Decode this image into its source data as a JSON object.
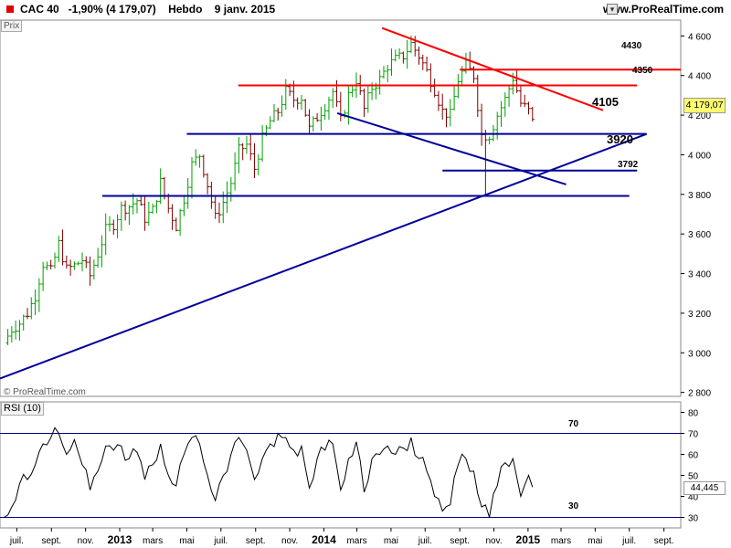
{
  "header": {
    "title": "CAC 40   -1,90% (4 179,07)    Hebdo    9 janv. 2015",
    "website": "www.ProRealTime.com"
  },
  "panel_labels": {
    "price": "Prix",
    "rsi": "RSI (10)"
  },
  "watermark": "© ProRealTime.com",
  "last_price_label": "4 179,07",
  "last_rsi_label": "44,445",
  "colors": {
    "bar_up": "#00a000",
    "bar_down": "#800000",
    "resistance": "#ff0000",
    "support": "#000099",
    "rsi_line": "#000000"
  },
  "chart_data": [
    {
      "type": "ohlc",
      "timeframe": "weekly",
      "symbol": "CAC 40",
      "ylim": [
        2780,
        4680
      ],
      "yticks": [
        2800,
        3000,
        3200,
        3400,
        3600,
        3800,
        4000,
        4200,
        4400,
        4600
      ],
      "ytick_labels": [
        "2 800",
        "3 000",
        "3 200",
        "3 400",
        "3 600",
        "3 800",
        "4 000",
        "4 200",
        "4 400",
        "4 600"
      ],
      "xlim": [
        "2012-06-01",
        "2015-10-01"
      ],
      "close_series": [
        {
          "date": "2012-06-08",
          "v": 3050
        },
        {
          "date": "2012-06-22",
          "v": 3120
        },
        {
          "date": "2012-07-06",
          "v": 3150
        },
        {
          "date": "2012-07-20",
          "v": 3200
        },
        {
          "date": "2012-08-03",
          "v": 3290
        },
        {
          "date": "2012-08-17",
          "v": 3450
        },
        {
          "date": "2012-08-31",
          "v": 3410
        },
        {
          "date": "2012-09-14",
          "v": 3550
        },
        {
          "date": "2012-09-28",
          "v": 3420
        },
        {
          "date": "2012-10-12",
          "v": 3440
        },
        {
          "date": "2012-10-26",
          "v": 3470
        },
        {
          "date": "2012-11-09",
          "v": 3390
        },
        {
          "date": "2012-11-23",
          "v": 3500
        },
        {
          "date": "2012-12-07",
          "v": 3620
        },
        {
          "date": "2012-12-21",
          "v": 3650
        },
        {
          "date": "2013-01-04",
          "v": 3730
        },
        {
          "date": "2013-01-18",
          "v": 3740
        },
        {
          "date": "2013-02-01",
          "v": 3770
        },
        {
          "date": "2013-02-15",
          "v": 3680
        },
        {
          "date": "2013-03-01",
          "v": 3720
        },
        {
          "date": "2013-03-15",
          "v": 3860
        },
        {
          "date": "2013-03-29",
          "v": 3730
        },
        {
          "date": "2013-04-12",
          "v": 3640
        },
        {
          "date": "2013-04-26",
          "v": 3780
        },
        {
          "date": "2013-05-10",
          "v": 3950
        },
        {
          "date": "2013-05-24",
          "v": 4000
        },
        {
          "date": "2013-06-07",
          "v": 3850
        },
        {
          "date": "2013-06-21",
          "v": 3680
        },
        {
          "date": "2013-07-05",
          "v": 3760
        },
        {
          "date": "2013-07-19",
          "v": 3860
        },
        {
          "date": "2013-08-02",
          "v": 4020
        },
        {
          "date": "2013-08-16",
          "v": 4050
        },
        {
          "date": "2013-08-30",
          "v": 3930
        },
        {
          "date": "2013-09-13",
          "v": 4080
        },
        {
          "date": "2013-09-27",
          "v": 4170
        },
        {
          "date": "2013-10-11",
          "v": 4220
        },
        {
          "date": "2013-10-25",
          "v": 4320
        },
        {
          "date": "2013-11-08",
          "v": 4280
        },
        {
          "date": "2013-11-22",
          "v": 4290
        },
        {
          "date": "2013-12-06",
          "v": 4130
        },
        {
          "date": "2013-12-20",
          "v": 4190
        },
        {
          "date": "2014-01-03",
          "v": 4250
        },
        {
          "date": "2014-01-17",
          "v": 4320
        },
        {
          "date": "2014-01-31",
          "v": 4170
        },
        {
          "date": "2014-02-14",
          "v": 4300
        },
        {
          "date": "2014-02-28",
          "v": 4380
        },
        {
          "date": "2014-03-14",
          "v": 4230
        },
        {
          "date": "2014-03-28",
          "v": 4340
        },
        {
          "date": "2014-04-11",
          "v": 4380
        },
        {
          "date": "2014-04-25",
          "v": 4450
        },
        {
          "date": "2014-05-09",
          "v": 4480
        },
        {
          "date": "2014-05-23",
          "v": 4500
        },
        {
          "date": "2014-06-06",
          "v": 4560
        },
        {
          "date": "2014-06-20",
          "v": 4500
        },
        {
          "date": "2014-07-04",
          "v": 4420
        },
        {
          "date": "2014-07-18",
          "v": 4330
        },
        {
          "date": "2014-08-01",
          "v": 4220
        },
        {
          "date": "2014-08-15",
          "v": 4200
        },
        {
          "date": "2014-08-29",
          "v": 4380
        },
        {
          "date": "2014-09-12",
          "v": 4450
        },
        {
          "date": "2014-09-26",
          "v": 4400
        },
        {
          "date": "2014-10-10",
          "v": 4100
        },
        {
          "date": "2014-10-24",
          "v": 4100
        },
        {
          "date": "2014-11-07",
          "v": 4200
        },
        {
          "date": "2014-11-21",
          "v": 4280
        },
        {
          "date": "2014-12-05",
          "v": 4390
        },
        {
          "date": "2014-12-19",
          "v": 4260
        },
        {
          "date": "2015-01-02",
          "v": 4220
        },
        {
          "date": "2015-01-09",
          "v": 4179.07
        }
      ],
      "extremes": {
        "high": {
          "date": "2014-06-13",
          "v": 4600
        },
        "low": {
          "date": "2014-10-17",
          "v": 3790
        }
      },
      "annotations": [
        {
          "label": "4430",
          "value": 4430
        },
        {
          "label": "4350",
          "value": 4350
        },
        {
          "label": "4105",
          "value": 4105
        },
        {
          "label": "3920",
          "value": 3920
        },
        {
          "label": "3792",
          "value": 3792
        }
      ],
      "horizontal_levels": [
        {
          "name": "4430",
          "value": 4430,
          "color": "red",
          "from": "2014-09-01",
          "to": "2015-10-01"
        },
        {
          "name": "4350",
          "value": 4350,
          "color": "red",
          "from": "2013-08-01",
          "to": "2015-07-15"
        },
        {
          "name": "4105",
          "value": 4105,
          "color": "blue",
          "from": "2013-05-01",
          "to": "2015-08-01"
        },
        {
          "name": "3920",
          "value": 3920,
          "color": "blue",
          "from": "2014-08-01",
          "to": "2015-07-15"
        },
        {
          "name": "3792",
          "value": 3792,
          "color": "blue",
          "from": "2012-12-01",
          "to": "2015-07-01"
        }
      ],
      "trendlines": [
        {
          "name": "resistance",
          "color": "red",
          "points": [
            {
              "date": "2014-04-15",
              "v": 4640
            },
            {
              "date": "2015-05-15",
              "v": 4225
            }
          ]
        },
        {
          "name": "support",
          "color": "blue",
          "points": [
            {
              "date": "2012-06-01",
              "v": 2870
            },
            {
              "date": "2015-08-01",
              "v": 4105
            }
          ]
        },
        {
          "name": "channel",
          "color": "blue",
          "points": [
            {
              "date": "2014-01-25",
              "v": 4210
            },
            {
              "date": "2015-03-10",
              "v": 3850
            }
          ]
        }
      ]
    },
    {
      "type": "line",
      "name": "RSI (10)",
      "ylim": [
        25,
        85
      ],
      "yticks": [
        30,
        40,
        50,
        60,
        70,
        80
      ],
      "levels": [
        {
          "label": "70",
          "value": 70
        },
        {
          "label": "30",
          "value": 30
        }
      ],
      "series": [
        {
          "date": "2012-06-08",
          "v": 30
        },
        {
          "date": "2012-06-22",
          "v": 35
        },
        {
          "date": "2012-07-06",
          "v": 46
        },
        {
          "date": "2012-07-20",
          "v": 48
        },
        {
          "date": "2012-08-03",
          "v": 55
        },
        {
          "date": "2012-08-17",
          "v": 65
        },
        {
          "date": "2012-08-31",
          "v": 68
        },
        {
          "date": "2012-09-14",
          "v": 70
        },
        {
          "date": "2012-09-28",
          "v": 60
        },
        {
          "date": "2012-10-12",
          "v": 67
        },
        {
          "date": "2012-10-26",
          "v": 55
        },
        {
          "date": "2012-11-09",
          "v": 43
        },
        {
          "date": "2012-11-23",
          "v": 52
        },
        {
          "date": "2012-12-07",
          "v": 64
        },
        {
          "date": "2012-12-21",
          "v": 62
        },
        {
          "date": "2013-01-04",
          "v": 64
        },
        {
          "date": "2013-01-18",
          "v": 58
        },
        {
          "date": "2013-02-01",
          "v": 61
        },
        {
          "date": "2013-02-15",
          "v": 48
        },
        {
          "date": "2013-03-01",
          "v": 55
        },
        {
          "date": "2013-03-15",
          "v": 65
        },
        {
          "date": "2013-03-29",
          "v": 50
        },
        {
          "date": "2013-04-12",
          "v": 45
        },
        {
          "date": "2013-04-26",
          "v": 60
        },
        {
          "date": "2013-05-10",
          "v": 68
        },
        {
          "date": "2013-05-24",
          "v": 65
        },
        {
          "date": "2013-06-07",
          "v": 50
        },
        {
          "date": "2013-06-21",
          "v": 38
        },
        {
          "date": "2013-07-05",
          "v": 50
        },
        {
          "date": "2013-07-19",
          "v": 60
        },
        {
          "date": "2013-08-02",
          "v": 68
        },
        {
          "date": "2013-08-16",
          "v": 62
        },
        {
          "date": "2013-08-30",
          "v": 48
        },
        {
          "date": "2013-09-13",
          "v": 58
        },
        {
          "date": "2013-09-27",
          "v": 65
        },
        {
          "date": "2013-10-11",
          "v": 70
        },
        {
          "date": "2013-10-25",
          "v": 68
        },
        {
          "date": "2013-11-08",
          "v": 62
        },
        {
          "date": "2013-11-22",
          "v": 64
        },
        {
          "date": "2013-12-06",
          "v": 44
        },
        {
          "date": "2013-12-20",
          "v": 58
        },
        {
          "date": "2014-01-03",
          "v": 62
        },
        {
          "date": "2014-01-17",
          "v": 65
        },
        {
          "date": "2014-01-31",
          "v": 43
        },
        {
          "date": "2014-02-14",
          "v": 58
        },
        {
          "date": "2014-02-28",
          "v": 66
        },
        {
          "date": "2014-03-14",
          "v": 42
        },
        {
          "date": "2014-03-28",
          "v": 58
        },
        {
          "date": "2014-04-11",
          "v": 60
        },
        {
          "date": "2014-04-25",
          "v": 64
        },
        {
          "date": "2014-05-09",
          "v": 60
        },
        {
          "date": "2014-05-23",
          "v": 63
        },
        {
          "date": "2014-06-06",
          "v": 68
        },
        {
          "date": "2014-06-20",
          "v": 58
        },
        {
          "date": "2014-07-04",
          "v": 52
        },
        {
          "date": "2014-07-18",
          "v": 40
        },
        {
          "date": "2014-08-01",
          "v": 33
        },
        {
          "date": "2014-08-15",
          "v": 36
        },
        {
          "date": "2014-08-29",
          "v": 55
        },
        {
          "date": "2014-09-12",
          "v": 58
        },
        {
          "date": "2014-09-26",
          "v": 52
        },
        {
          "date": "2014-10-10",
          "v": 35
        },
        {
          "date": "2014-10-24",
          "v": 30
        },
        {
          "date": "2014-11-07",
          "v": 45
        },
        {
          "date": "2014-11-21",
          "v": 56
        },
        {
          "date": "2014-12-05",
          "v": 58
        },
        {
          "date": "2014-12-19",
          "v": 40
        },
        {
          "date": "2015-01-02",
          "v": 50
        },
        {
          "date": "2015-01-09",
          "v": 44.445
        }
      ]
    }
  ],
  "x_axis_labels": [
    {
      "label": "juil.",
      "date": "2012-07-01",
      "bold": false
    },
    {
      "label": "sept.",
      "date": "2012-09-01",
      "bold": false
    },
    {
      "label": "nov.",
      "date": "2012-11-01",
      "bold": false
    },
    {
      "label": "2013",
      "date": "2013-01-01",
      "bold": true
    },
    {
      "label": "mars",
      "date": "2013-03-01",
      "bold": false
    },
    {
      "label": "mai",
      "date": "2013-05-01",
      "bold": false
    },
    {
      "label": "juil.",
      "date": "2013-07-01",
      "bold": false
    },
    {
      "label": "sept.",
      "date": "2013-09-01",
      "bold": false
    },
    {
      "label": "nov.",
      "date": "2013-11-01",
      "bold": false
    },
    {
      "label": "2014",
      "date": "2014-01-01",
      "bold": true
    },
    {
      "label": "mars",
      "date": "2014-03-01",
      "bold": false
    },
    {
      "label": "mai",
      "date": "2014-05-01",
      "bold": false
    },
    {
      "label": "juil.",
      "date": "2014-07-01",
      "bold": false
    },
    {
      "label": "sept.",
      "date": "2014-09-01",
      "bold": false
    },
    {
      "label": "nov.",
      "date": "2014-11-01",
      "bold": false
    },
    {
      "label": "2015",
      "date": "2015-01-01",
      "bold": true
    },
    {
      "label": "mars",
      "date": "2015-03-01",
      "bold": false
    },
    {
      "label": "mai",
      "date": "2015-05-01",
      "bold": false
    },
    {
      "label": "juil.",
      "date": "2015-07-01",
      "bold": false
    },
    {
      "label": "sept.",
      "date": "2015-09-01",
      "bold": false
    }
  ]
}
